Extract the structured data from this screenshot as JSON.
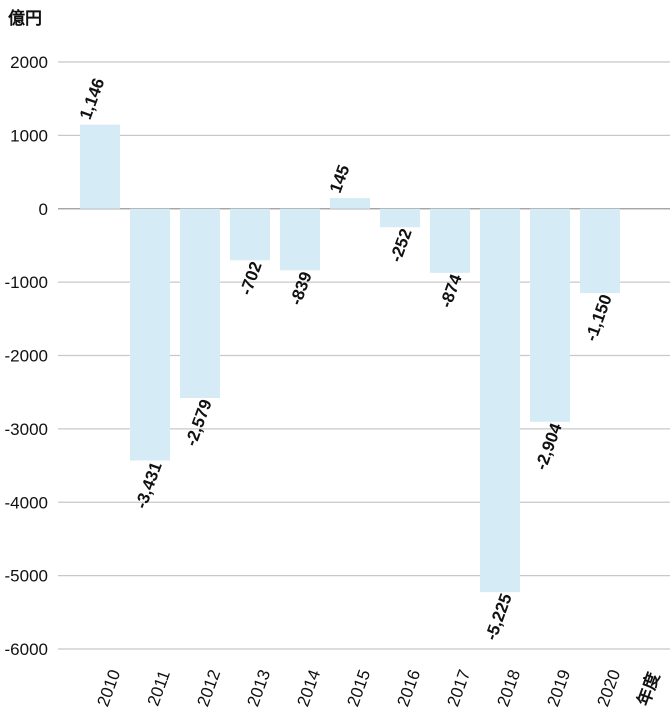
{
  "chart_data": {
    "type": "bar",
    "unit_label": "億円",
    "xlabel": "年度",
    "ylabel": "",
    "title": "",
    "categories": [
      "2010",
      "2011",
      "2012",
      "2013",
      "2014",
      "2015",
      "2016",
      "2017",
      "2018",
      "2019",
      "2020"
    ],
    "values": [
      1146,
      -3431,
      -2579,
      -702,
      -839,
      145,
      -252,
      -874,
      -5225,
      -2904,
      -1150
    ],
    "data_labels": [
      "1,146",
      "-3,431",
      "-2,579",
      "-702",
      "-839",
      "145",
      "-252",
      "-874",
      "-5,225",
      "-2,904",
      "-1,150"
    ],
    "ylim": [
      -6000,
      2000
    ],
    "yticks": [
      2000,
      1000,
      0,
      -1000,
      -2000,
      -3000,
      -4000,
      -5000,
      -6000
    ],
    "grid": true,
    "bar_color": "#d5ebf6",
    "grid_color": "#c8c8c8"
  }
}
